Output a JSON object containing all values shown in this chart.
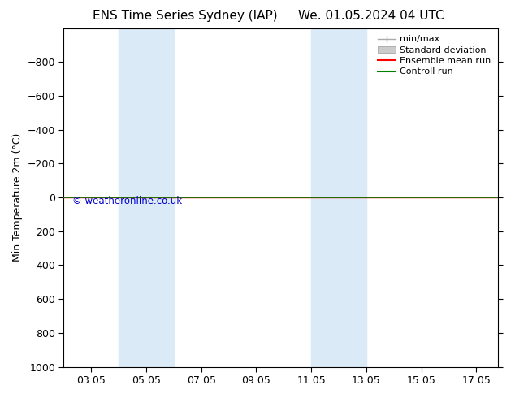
{
  "title_left": "ENS Time Series Sydney (IAP)",
  "title_right": "We. 01.05.2024 04 UTC",
  "ylabel": "Min Temperature 2m (°C)",
  "ylim_bottom": 1000,
  "ylim_top": -1000,
  "yticks": [
    -800,
    -600,
    -400,
    -200,
    0,
    200,
    400,
    600,
    800,
    1000
  ],
  "xtick_labels": [
    "03.05",
    "05.05",
    "07.05",
    "09.05",
    "11.05",
    "13.05",
    "15.05",
    "17.05"
  ],
  "xtick_positions": [
    3,
    5,
    7,
    9,
    11,
    13,
    15,
    17
  ],
  "xlim": [
    2.0,
    17.8
  ],
  "shaded_bands": [
    {
      "xmin": 4.0,
      "xmax": 6.0,
      "color": "#daeaf6"
    },
    {
      "xmin": 11.0,
      "xmax": 13.0,
      "color": "#daeaf6"
    }
  ],
  "green_line_color": "#008000",
  "red_line_color": "#ff0000",
  "watermark": "© weatheronline.co.uk",
  "watermark_color": "#0000cc",
  "legend_items": [
    "min/max",
    "Standard deviation",
    "Ensemble mean run",
    "Controll run"
  ],
  "background_color": "#ffffff",
  "plot_bg_color": "#ffffff",
  "border_color": "#000000",
  "tick_fontsize": 9,
  "ylabel_fontsize": 9,
  "title_fontsize": 11,
  "legend_fontsize": 8
}
